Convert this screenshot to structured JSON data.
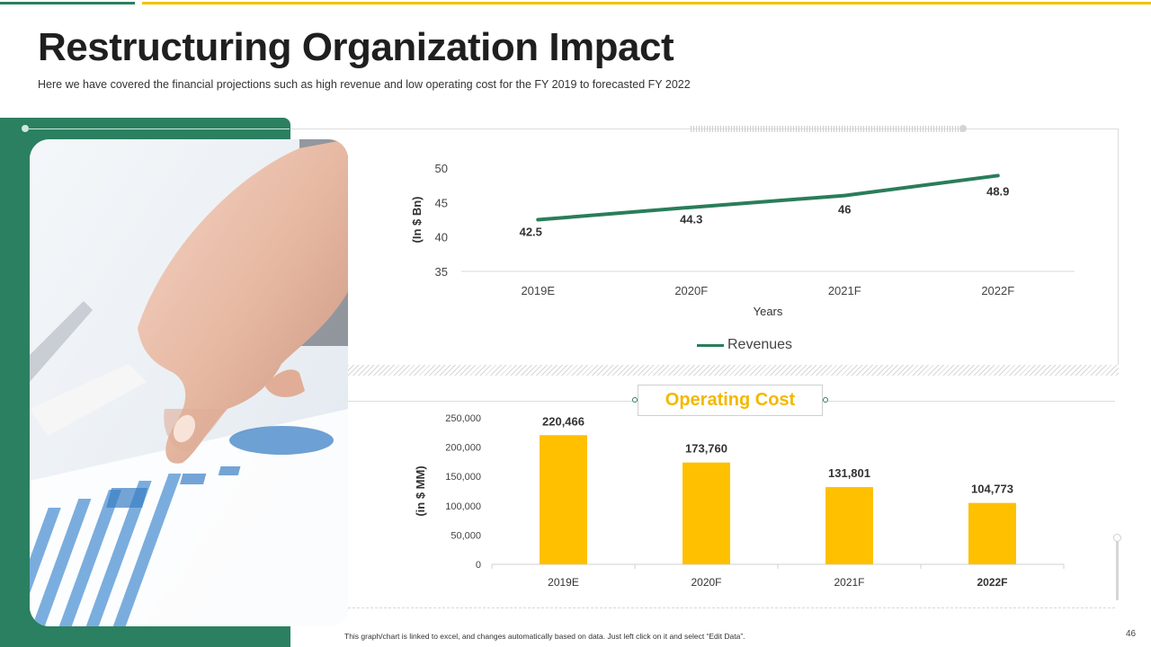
{
  "slide": {
    "title": "Restructuring Organization Impact",
    "subtitle": "Here we have covered the financial projections such as high revenue and low operating cost for the FY 2019  to forecasted FY 2022",
    "footer_note": "This graph/chart is linked to excel, and changes automatically based on data. Just left click on it and select “Edit Data”.",
    "page_number": "46"
  },
  "colors": {
    "brand_green": "#2a8060",
    "line_green": "#2a7d5a",
    "accent_yellow": "#f2c200",
    "bar_yellow": "#ffc000",
    "title_yellow": "#f2b800"
  },
  "photo": {
    "subject": "hand-pointing-at-charts-image"
  },
  "chart_data": [
    {
      "type": "line",
      "categories": [
        "2019E",
        "2020F",
        "2021F",
        "2022F"
      ],
      "series": [
        {
          "name": "Revenues",
          "values": [
            42.5,
            44.3,
            46,
            48.9
          ]
        }
      ],
      "data_labels": [
        "42.5",
        "44.3",
        "46",
        "48.9"
      ],
      "ylabel": "(In $ Bn)",
      "xlabel": "Years",
      "ylim": [
        35,
        50
      ],
      "yticks": [
        "35",
        "40",
        "45",
        "50"
      ],
      "y_tick_values": [
        35,
        40,
        45,
        50
      ],
      "legend": "bottom"
    },
    {
      "type": "bar",
      "title": "Operating Cost",
      "categories": [
        "2019E",
        "2020F",
        "2021F",
        "2022F"
      ],
      "values": [
        220466,
        173760,
        131801,
        104773
      ],
      "data_labels": [
        "220,466",
        "173,760",
        "131,801",
        "104,773"
      ],
      "ylabel": "(in $ MM)",
      "ylim": [
        0,
        250000
      ],
      "yticks": [
        "0",
        "50,000",
        "100,000",
        "150,000",
        "200,000",
        "250,000"
      ],
      "y_tick_values": [
        0,
        50000,
        100000,
        150000,
        200000,
        250000
      ]
    }
  ]
}
